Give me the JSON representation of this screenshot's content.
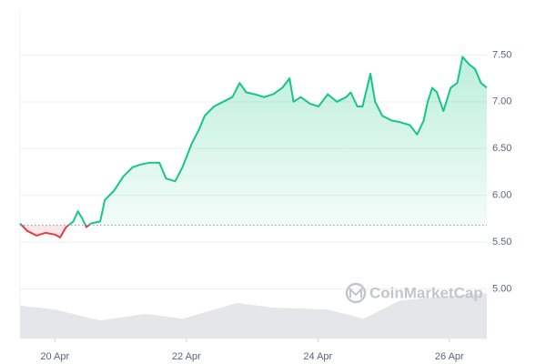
{
  "chart_data": {
    "type": "line",
    "watermark": "CoinMarketCap",
    "x": [
      19.47,
      19.58,
      19.72,
      19.86,
      20.0,
      20.08,
      20.17,
      20.28,
      20.35,
      20.42,
      20.48,
      20.55,
      20.69,
      20.76,
      20.9,
      21.04,
      21.18,
      21.31,
      21.45,
      21.59,
      21.69,
      21.83,
      21.94,
      22.08,
      22.19,
      22.28,
      22.42,
      22.56,
      22.7,
      22.81,
      22.91,
      23.04,
      23.18,
      23.32,
      23.46,
      23.57,
      23.63,
      23.74,
      23.88,
      24.01,
      24.15,
      24.29,
      24.43,
      24.5,
      24.6,
      24.68,
      24.8,
      24.87,
      24.98,
      25.12,
      25.26,
      25.4,
      25.51,
      25.61,
      25.67,
      25.74,
      25.81,
      25.91,
      26.02,
      26.12,
      26.2,
      26.3,
      26.39,
      26.48,
      26.57
    ],
    "series": [
      {
        "name": "Price",
        "color": "#16c784",
        "down_color": "#ea3943",
        "values": [
          5.7,
          5.62,
          5.57,
          5.6,
          5.58,
          5.55,
          5.66,
          5.72,
          5.83,
          5.75,
          5.66,
          5.7,
          5.72,
          5.95,
          6.05,
          6.2,
          6.3,
          6.33,
          6.35,
          6.35,
          6.18,
          6.15,
          6.3,
          6.55,
          6.7,
          6.85,
          6.95,
          7.0,
          7.05,
          7.2,
          7.1,
          7.08,
          7.05,
          7.08,
          7.15,
          7.25,
          7.0,
          7.05,
          6.98,
          6.95,
          7.08,
          7.0,
          7.05,
          7.1,
          6.95,
          6.95,
          7.3,
          7.0,
          6.85,
          6.8,
          6.78,
          6.75,
          6.65,
          6.8,
          7.0,
          7.15,
          7.1,
          6.9,
          7.15,
          7.2,
          7.48,
          7.4,
          7.35,
          7.2,
          7.15
        ]
      },
      {
        "name": "Volume",
        "axis": "y2",
        "color": "#e4e6ea",
        "x": [
          19.47,
          20.0,
          20.69,
          21.38,
          21.94,
          22.77,
          23.32,
          24.15,
          24.7,
          25.26,
          26.09,
          26.57
        ],
        "values": [
          10,
          8.8,
          5.5,
          7.5,
          6,
          10.8,
          9.4,
          8.8,
          6,
          11.6,
          13,
          13.8
        ]
      }
    ],
    "baseline": 5.68,
    "xlim": [
      19.47,
      26.57
    ],
    "xticks": [
      {
        "value": 20,
        "label": "20 Apr"
      },
      {
        "value": 22,
        "label": "22 Apr"
      },
      {
        "value": 24,
        "label": "24 Apr"
      },
      {
        "value": 26,
        "label": "26 Apr"
      }
    ],
    "ylim": [
      4.47,
      7.99
    ],
    "yticks": [
      {
        "value": 5,
        "label": "5.00"
      },
      {
        "value": 5.5,
        "label": "5.50"
      },
      {
        "value": 6,
        "label": "6.00"
      },
      {
        "value": 6.5,
        "label": "6.50"
      },
      {
        "value": 7,
        "label": "7.00"
      },
      {
        "value": 7.5,
        "label": "7.50"
      }
    ],
    "y2lim": [
      0,
      100
    ],
    "grid": true
  }
}
